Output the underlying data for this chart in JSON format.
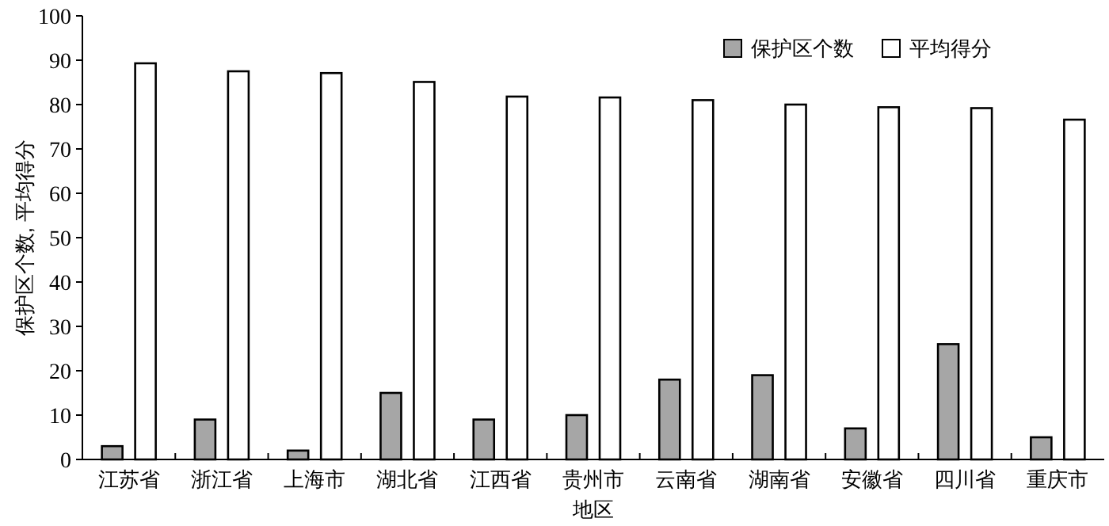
{
  "chart_data": {
    "type": "bar",
    "xlabel": "地区",
    "ylabel": "保护区个数, 平均得分",
    "categories": [
      "江苏省",
      "浙江省",
      "上海市",
      "湖北省",
      "江西省",
      "贵州市",
      "云南省",
      "湖南省",
      "安徽省",
      "四川省",
      "重庆市"
    ],
    "series": [
      {
        "name": "保护区个数",
        "color": "#a6a6a6",
        "values": [
          3,
          9,
          2,
          15,
          9,
          10,
          18,
          19,
          7,
          26,
          5
        ]
      },
      {
        "name": "平均得分",
        "color": "#ffffff",
        "values": [
          89.3,
          87.5,
          87.1,
          85.1,
          81.8,
          81.6,
          81,
          80,
          79.4,
          79.2,
          76.6
        ]
      }
    ],
    "ylim": [
      0,
      100
    ],
    "yticks": [
      0,
      10,
      20,
      30,
      40,
      50,
      60,
      70,
      80,
      90,
      100
    ],
    "grid": false,
    "legend": "top right"
  }
}
